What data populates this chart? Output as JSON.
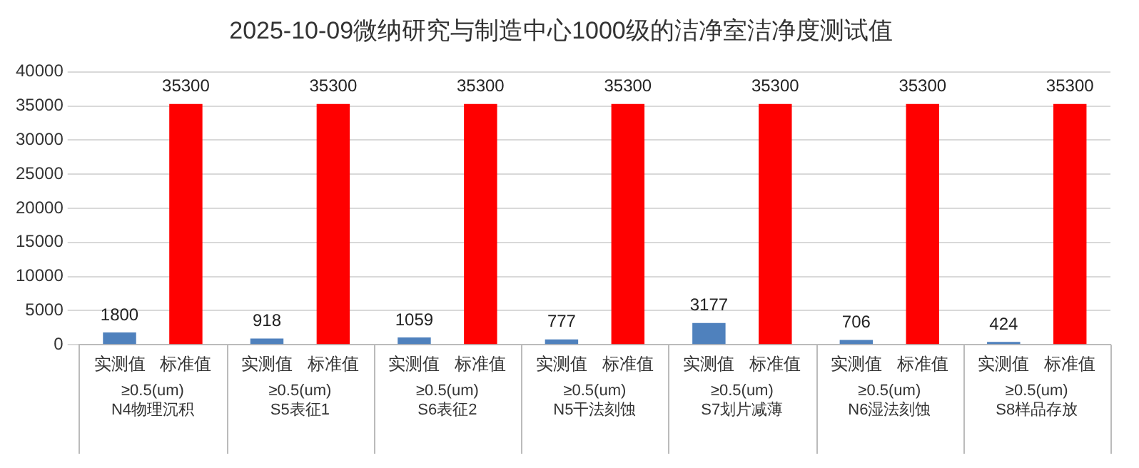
{
  "chart_data": {
    "type": "bar",
    "title": "2025-10-09微纳研究与制造中心1000级的洁净室洁净度测试值",
    "categories": [
      "≥0.5(um)\nN4物理沉积",
      "≥0.5(um)\nS5表征1",
      "≥0.5(um)\nS6表征2",
      "≥0.5(um)\nN5干法刻蚀",
      "≥0.5(um)\nS7划片减薄",
      "≥0.5(um)\nN6湿法刻蚀",
      "≥0.5(um)\nS8样品存放"
    ],
    "series": [
      {
        "name": "实测值",
        "color": "#4f81bd",
        "values": [
          1800,
          918,
          1059,
          777,
          3177,
          706,
          424
        ]
      },
      {
        "name": "标准值",
        "color": "#ff0000",
        "values": [
          35300,
          35300,
          35300,
          35300,
          35300,
          35300,
          35300
        ]
      }
    ],
    "ylim": [
      0,
      40000
    ],
    "yticks": [
      0,
      5000,
      10000,
      15000,
      20000,
      25000,
      30000,
      35000,
      40000
    ],
    "grid": "y",
    "data_labels": true,
    "legend": false
  }
}
